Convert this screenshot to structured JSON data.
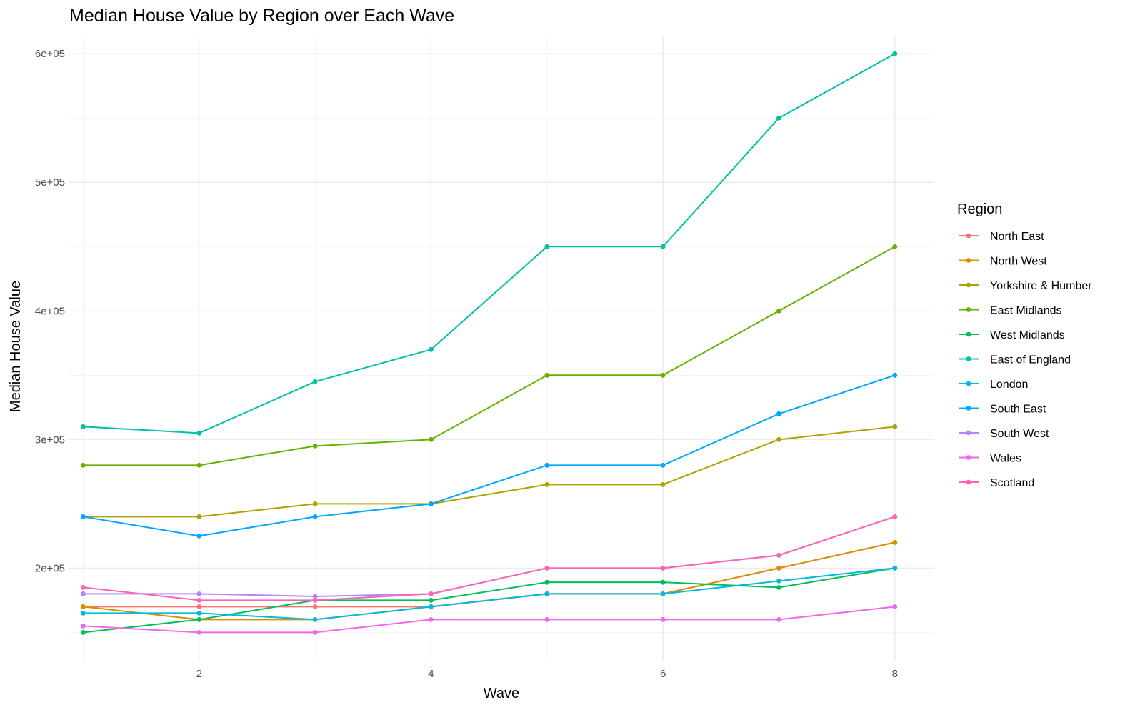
{
  "chart_data": {
    "type": "line",
    "title": "Median House Value by Region over Each Wave",
    "xlabel": "Wave",
    "ylabel": "Median House Value",
    "x": [
      1,
      2,
      3,
      4,
      5,
      6,
      7,
      8
    ],
    "xlim": [
      0.88,
      8.34
    ],
    "ylim": [
      128000,
      614000
    ],
    "xticks": [
      2,
      4,
      6,
      8
    ],
    "xtick_labels": [
      "2",
      "4",
      "6",
      "8"
    ],
    "yticks": [
      200000,
      300000,
      400000,
      500000,
      600000
    ],
    "ytick_labels": [
      "2e+05",
      "3e+05",
      "4e+05",
      "5e+05",
      "6e+05"
    ],
    "grid": true,
    "legend_title": "Region",
    "legend_position": "right",
    "series": [
      {
        "name": "North East",
        "color": "#F8766D",
        "values": [
          170000,
          170000,
          170000,
          170000,
          180000,
          180000,
          200000,
          220000
        ]
      },
      {
        "name": "North West",
        "color": "#DB8E00",
        "values": [
          170000,
          160000,
          160000,
          170000,
          180000,
          180000,
          200000,
          220000
        ]
      },
      {
        "name": "Yorkshire & Humber",
        "color": "#AEA200",
        "values": [
          240000,
          240000,
          250000,
          250000,
          265000,
          265000,
          300000,
          310000
        ]
      },
      {
        "name": "East Midlands",
        "color": "#64B200",
        "values": [
          280000,
          280000,
          295000,
          300000,
          350000,
          350000,
          400000,
          450000
        ]
      },
      {
        "name": "West Midlands",
        "color": "#00BD5C",
        "values": [
          150000,
          160000,
          175000,
          175000,
          189000,
          189000,
          185000,
          200000
        ]
      },
      {
        "name": "East of England",
        "color": "#00C1A7",
        "values": [
          310000,
          305000,
          345000,
          370000,
          450000,
          450000,
          550000,
          600000
        ]
      },
      {
        "name": "London",
        "color": "#00BADE",
        "values": [
          165000,
          165000,
          160000,
          170000,
          180000,
          180000,
          190000,
          200000
        ]
      },
      {
        "name": "South East",
        "color": "#00A6FF",
        "values": [
          240000,
          225000,
          240000,
          250000,
          280000,
          280000,
          320000,
          350000
        ]
      },
      {
        "name": "South West",
        "color": "#B385FF",
        "values": [
          180000,
          180000,
          178000,
          180000,
          200000,
          200000,
          210000,
          240000
        ]
      },
      {
        "name": "Wales",
        "color": "#EF67EB",
        "values": [
          155000,
          150000,
          150000,
          160000,
          160000,
          160000,
          160000,
          170000
        ]
      },
      {
        "name": "Scotland",
        "color": "#FF63B6",
        "values": [
          185000,
          175000,
          175000,
          180000,
          200000,
          200000,
          210000,
          240000
        ]
      }
    ]
  }
}
